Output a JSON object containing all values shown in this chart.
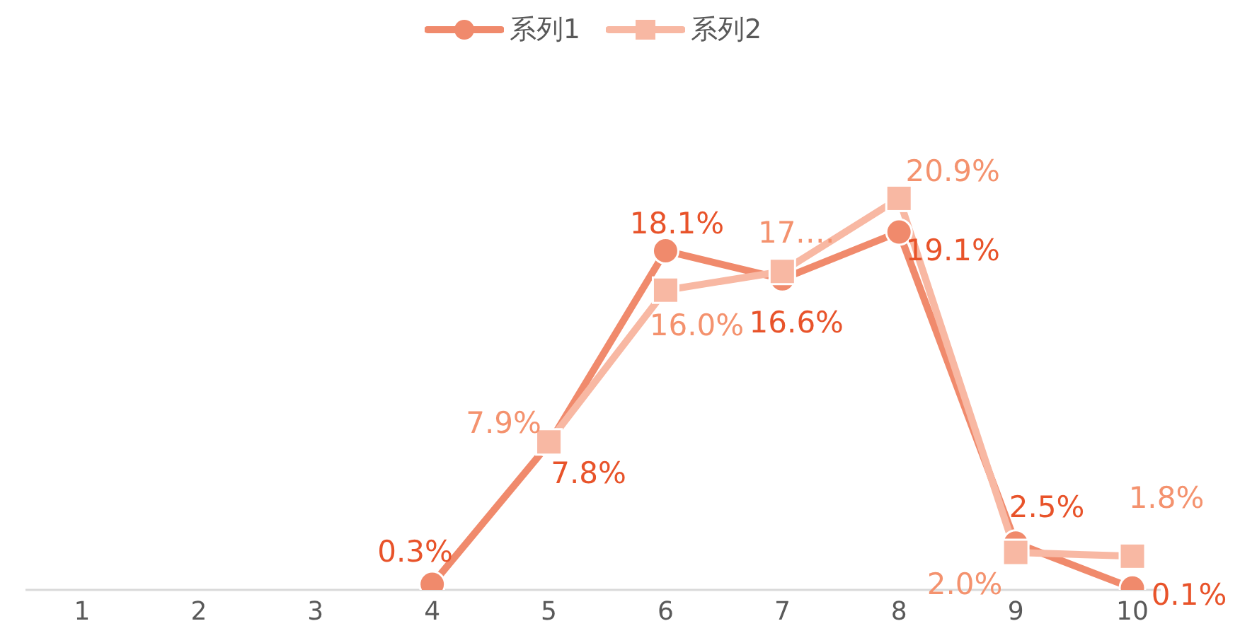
{
  "chart_data": {
    "type": "line",
    "categories": [
      "1",
      "2",
      "3",
      "4",
      "5",
      "6",
      "7",
      "8",
      "9",
      "10"
    ],
    "series": [
      {
        "name": "系列1",
        "color": "#f08a6c",
        "marker": "circle",
        "values": [
          null,
          null,
          null,
          0.3,
          7.8,
          18.1,
          16.6,
          19.1,
          2.5,
          0.1
        ],
        "value_labels": [
          null,
          null,
          null,
          "0.3%",
          "7.8%",
          "18.1%",
          "16.6%",
          "19.1%",
          "2.5%",
          "0.1%"
        ]
      },
      {
        "name": "系列2",
        "color": "#f8b8a3",
        "marker": "square",
        "values": [
          null,
          null,
          null,
          null,
          7.9,
          16.0,
          17.0,
          20.9,
          2.0,
          1.8
        ],
        "value_labels": [
          null,
          null,
          null,
          null,
          "7.9%",
          "16.0%",
          "17.…",
          "20.9%",
          "2.0%",
          "1.8%"
        ]
      }
    ],
    "legend": "top",
    "tick_labels": "x",
    "grid": false,
    "line_style": "solid"
  }
}
